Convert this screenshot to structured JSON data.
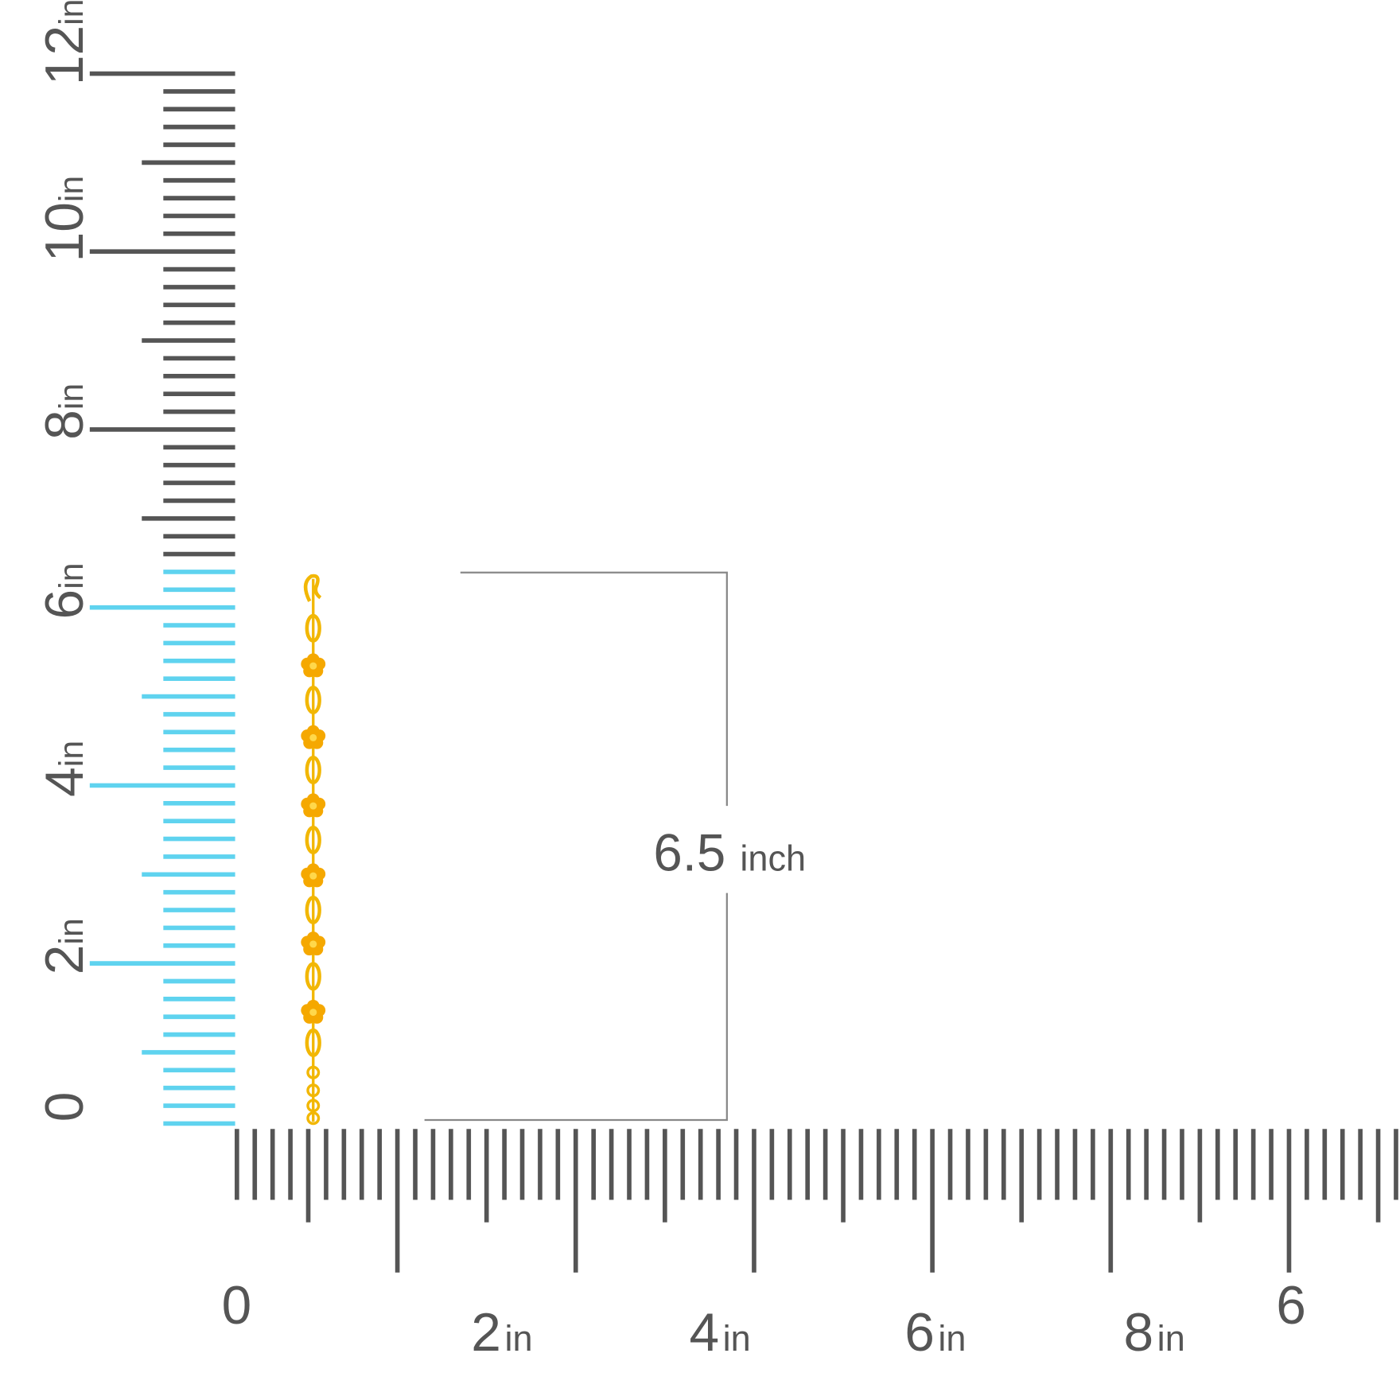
{
  "vertical_ruler": {
    "labels": [
      {
        "number": "0"
      },
      {
        "number": "2",
        "unit": "in"
      },
      {
        "number": "4",
        "unit": "in"
      },
      {
        "number": "6",
        "unit": "in"
      },
      {
        "number": "8",
        "unit": "in"
      },
      {
        "number": "10",
        "unit": "in"
      },
      {
        "number": "12",
        "unit": "in"
      }
    ]
  },
  "horizontal_ruler": {
    "labels": [
      {
        "number": "0"
      },
      {
        "number": "2",
        "unit": "in"
      },
      {
        "number": "4",
        "unit": "in"
      },
      {
        "number": "6",
        "unit": "in"
      },
      {
        "number": "8",
        "unit": "in"
      },
      {
        "number": "6"
      }
    ]
  },
  "dimension": {
    "value": "6.5",
    "unit": "inch"
  }
}
